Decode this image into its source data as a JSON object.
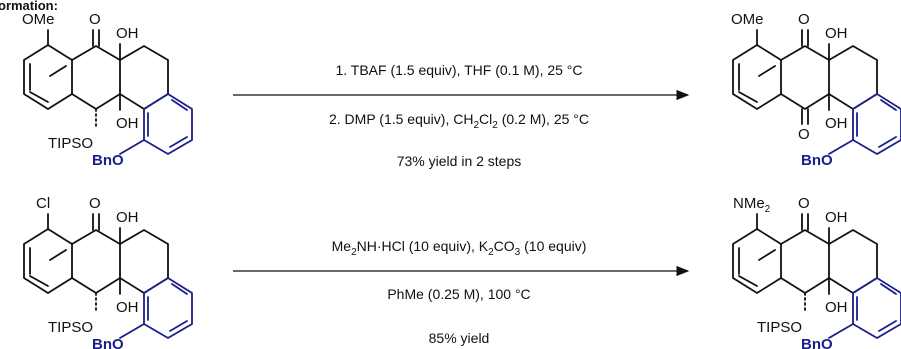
{
  "header": {
    "title_fragment": "ormation:"
  },
  "reaction1": {
    "step1": "1. TBAF (1.5 equiv), THF (0.1 M), 25 °C",
    "step2_pre": "2. DMP (1.5 equiv), CH",
    "step2_sub1": "2",
    "step2_mid": "Cl",
    "step2_sub2": "2",
    "step2_post": " (0.2 M), 25 °C",
    "yield": "73% yield in 2 steps"
  },
  "reaction2": {
    "cond1_a": "Me",
    "cond1_sub1": "2",
    "cond1_b": "NH·HCl (10 equiv), K",
    "cond1_sub2": "2",
    "cond1_c": "CO",
    "cond1_sub3": "3",
    "cond1_d": " (10 equiv)",
    "cond2": "PhMe (0.25 M), 100 °C",
    "yield": "85% yield"
  },
  "labels": {
    "ome": "OMe",
    "o": "O",
    "oh": "OH",
    "tipso": "TIPSO",
    "bno": "BnO",
    "cl": "Cl",
    "nme": "NMe",
    "nme_sub": "2"
  },
  "colors": {
    "benzyl_ring": "#1a1f8c",
    "ink": "#111111"
  }
}
